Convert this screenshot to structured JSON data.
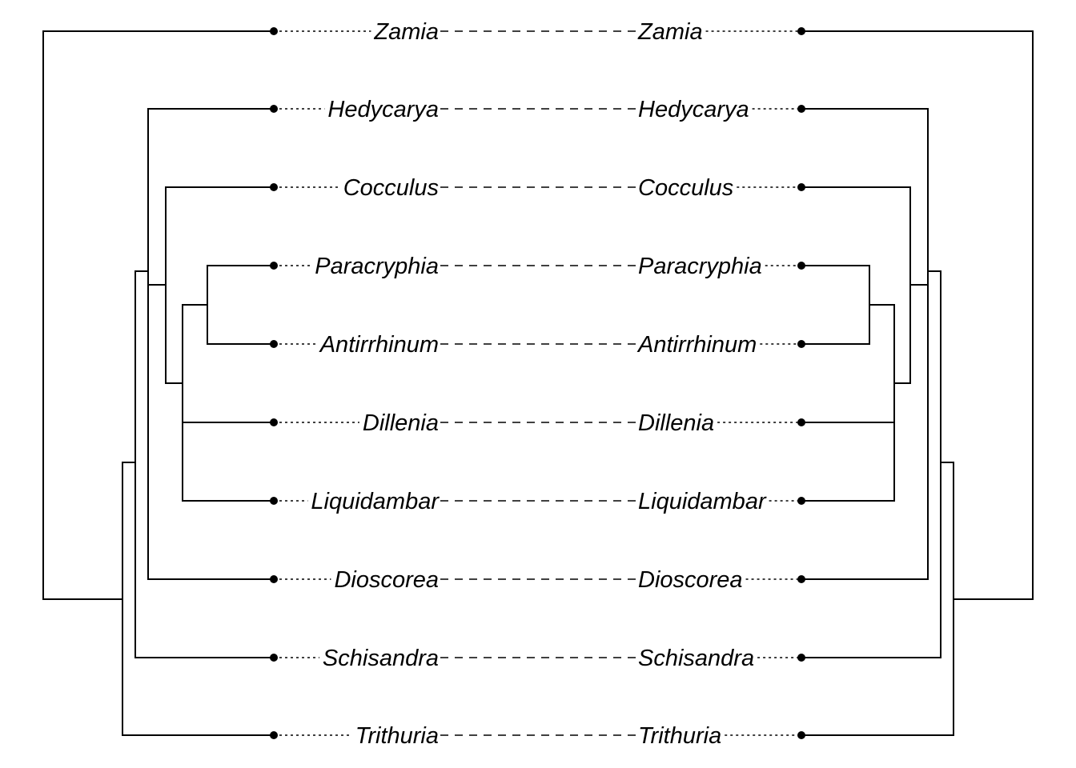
{
  "diagram": {
    "type": "tanglegram",
    "left_tree": {
      "tips": [
        "Zamia",
        "Hedycarya",
        "Cocculus",
        "Paracryphia",
        "Antirrhinum",
        "Dillenia",
        "Liquidambar",
        "Dioscorea",
        "Schisandra",
        "Trithuria"
      ]
    },
    "right_tree": {
      "tips": [
        "Zamia",
        "Hedycarya",
        "Cocculus",
        "Paracryphia",
        "Antirrhinum",
        "Dillenia",
        "Liquidambar",
        "Dioscorea",
        "Schisandra",
        "Trithuria"
      ]
    },
    "links": [
      [
        "Zamia",
        "Zamia"
      ],
      [
        "Hedycarya",
        "Hedycarya"
      ],
      [
        "Cocculus",
        "Cocculus"
      ],
      [
        "Paracryphia",
        "Paracryphia"
      ],
      [
        "Antirrhinum",
        "Antirrhinum"
      ],
      [
        "Dillenia",
        "Dillenia"
      ],
      [
        "Liquidambar",
        "Liquidambar"
      ],
      [
        "Dioscorea",
        "Dioscorea"
      ],
      [
        "Schisandra",
        "Schisandra"
      ],
      [
        "Trithuria",
        "Trithuria"
      ]
    ]
  }
}
